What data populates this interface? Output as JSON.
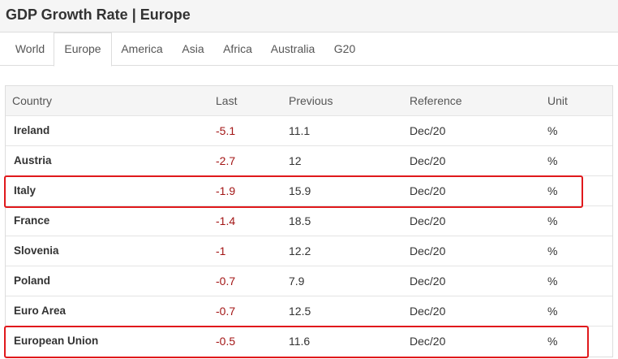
{
  "header": {
    "title": "GDP Growth Rate | Europe"
  },
  "tabs": [
    {
      "label": "World",
      "active": false
    },
    {
      "label": "Europe",
      "active": true
    },
    {
      "label": "America",
      "active": false
    },
    {
      "label": "Asia",
      "active": false
    },
    {
      "label": "Africa",
      "active": false
    },
    {
      "label": "Australia",
      "active": false
    },
    {
      "label": "G20",
      "active": false
    }
  ],
  "table": {
    "columns": [
      "Country",
      "Last",
      "Previous",
      "Reference",
      "Unit"
    ],
    "rows": [
      {
        "country": "Ireland",
        "last": "-5.1",
        "previous": "11.1",
        "reference": "Dec/20",
        "unit": "%"
      },
      {
        "country": "Austria",
        "last": "-2.7",
        "previous": "12",
        "reference": "Dec/20",
        "unit": "%"
      },
      {
        "country": "Italy",
        "last": "-1.9",
        "previous": "15.9",
        "reference": "Dec/20",
        "unit": "%"
      },
      {
        "country": "France",
        "last": "-1.4",
        "previous": "18.5",
        "reference": "Dec/20",
        "unit": "%"
      },
      {
        "country": "Slovenia",
        "last": "-1",
        "previous": "12.2",
        "reference": "Dec/20",
        "unit": "%"
      },
      {
        "country": "Poland",
        "last": "-0.7",
        "previous": "7.9",
        "reference": "Dec/20",
        "unit": "%"
      },
      {
        "country": "Euro Area",
        "last": "-0.7",
        "previous": "12.5",
        "reference": "Dec/20",
        "unit": "%"
      },
      {
        "country": "European Union",
        "last": "-0.5",
        "previous": "11.6",
        "reference": "Dec/20",
        "unit": "%"
      }
    ]
  },
  "colors": {
    "negative_value": "#a31515",
    "highlight_border": "#e0191c"
  }
}
